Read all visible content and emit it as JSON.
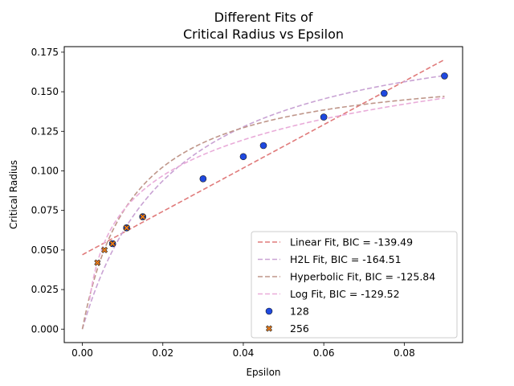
{
  "chart_data": {
    "type": "scatter",
    "title_line1": "Different Fits of",
    "title_line2": "Critical Radius vs Epsilon",
    "xlabel": "Epsilon",
    "ylabel": "Critical Radius",
    "xlim": [
      -0.0045,
      0.0945
    ],
    "ylim": [
      -0.0085,
      0.1785
    ],
    "x_ticks": [
      0.0,
      0.02,
      0.04,
      0.06,
      0.08
    ],
    "x_tick_labels": [
      "0.00",
      "0.02",
      "0.04",
      "0.06",
      "0.08"
    ],
    "y_ticks": [
      0.0,
      0.025,
      0.05,
      0.075,
      0.1,
      0.125,
      0.15,
      0.175
    ],
    "y_tick_labels": [
      "0.000",
      "0.025",
      "0.050",
      "0.075",
      "0.100",
      "0.125",
      "0.150",
      "0.175"
    ],
    "grid": false,
    "legend_position": "lower-right",
    "fits": [
      {
        "name": "Linear Fit, BIC = -139.49",
        "model": "linear",
        "color": "#e07b7b",
        "params": {
          "a": 1.37,
          "b": 0.047
        },
        "x_start": 0.0
      },
      {
        "name": "H2L Fit, BIC = -164.51",
        "model": "h2l",
        "color": "#c9a3d4",
        "params": {
          "a": 0.201,
          "k": 0.0229
        },
        "x_start": 0.0
      },
      {
        "name": "Hyperbolic Fit, BIC = -125.84",
        "model": "hyperbolic",
        "color": "#bf968a",
        "params": {
          "a": 0.168,
          "k": 0.0128
        },
        "x_start": 0.0
      },
      {
        "name": "Log Fit, BIC = -129.52",
        "model": "log",
        "color": "#e9acd9",
        "params": {
          "a": 0.0326,
          "b": 0.2245
        },
        "x_start": 0.0018
      }
    ],
    "series": [
      {
        "name": "128",
        "marker": "circle",
        "color": "#1f49e0",
        "x": [
          0.0075,
          0.011,
          0.015,
          0.03,
          0.04,
          0.045,
          0.06,
          0.075,
          0.09
        ],
        "y": [
          0.054,
          0.064,
          0.071,
          0.095,
          0.109,
          0.116,
          0.134,
          0.149,
          0.16
        ]
      },
      {
        "name": "256",
        "marker": "x",
        "color": "#ee7e1c",
        "x": [
          0.00375,
          0.0055,
          0.0075,
          0.011,
          0.015
        ],
        "y": [
          0.042,
          0.05,
          0.054,
          0.064,
          0.071
        ]
      }
    ]
  }
}
